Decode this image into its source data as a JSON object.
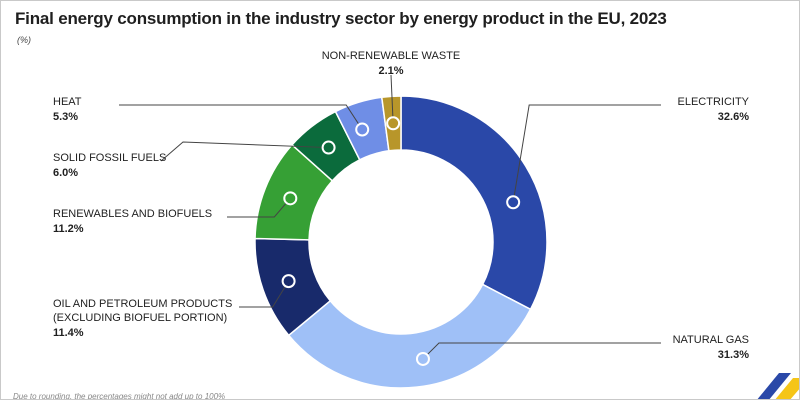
{
  "chart_data": {
    "type": "pie",
    "title": "Final energy consumption in the industry sector by energy product in the EU, 2023",
    "unit": "(%)",
    "hole": true,
    "slices": [
      {
        "name_lines": [
          "ELECTRICITY"
        ],
        "value": 32.6,
        "value_label": "32.6%",
        "color": "#2a48a8"
      },
      {
        "name_lines": [
          "NATURAL GAS"
        ],
        "value": 31.3,
        "value_label": "31.3%",
        "color": "#9fc0f7"
      },
      {
        "name_lines": [
          "OIL AND PETROLEUM PRODUCTS",
          "(EXCLUDING BIOFUEL PORTION)"
        ],
        "value": 11.4,
        "value_label": "11.4%",
        "color": "#182a6b"
      },
      {
        "name_lines": [
          "RENEWABLES AND BIOFUELS"
        ],
        "value": 11.2,
        "value_label": "11.2%",
        "color": "#36a035"
      },
      {
        "name_lines": [
          "SOLID FOSSIL FUELS"
        ],
        "value": 6.0,
        "value_label": "6.0%",
        "color": "#0b6b3c"
      },
      {
        "name_lines": [
          "HEAT"
        ],
        "value": 5.3,
        "value_label": "5.3%",
        "color": "#6f8ee6"
      },
      {
        "name_lines": [
          "NON-RENEWABLE WASTE"
        ],
        "value": 2.1,
        "value_label": "2.1%",
        "color": "#b8962a"
      }
    ]
  },
  "footnote": "Due to rounding, the percentages might not add up to 100%",
  "logo_colors": [
    "#2a48a8",
    "#f5c518"
  ]
}
